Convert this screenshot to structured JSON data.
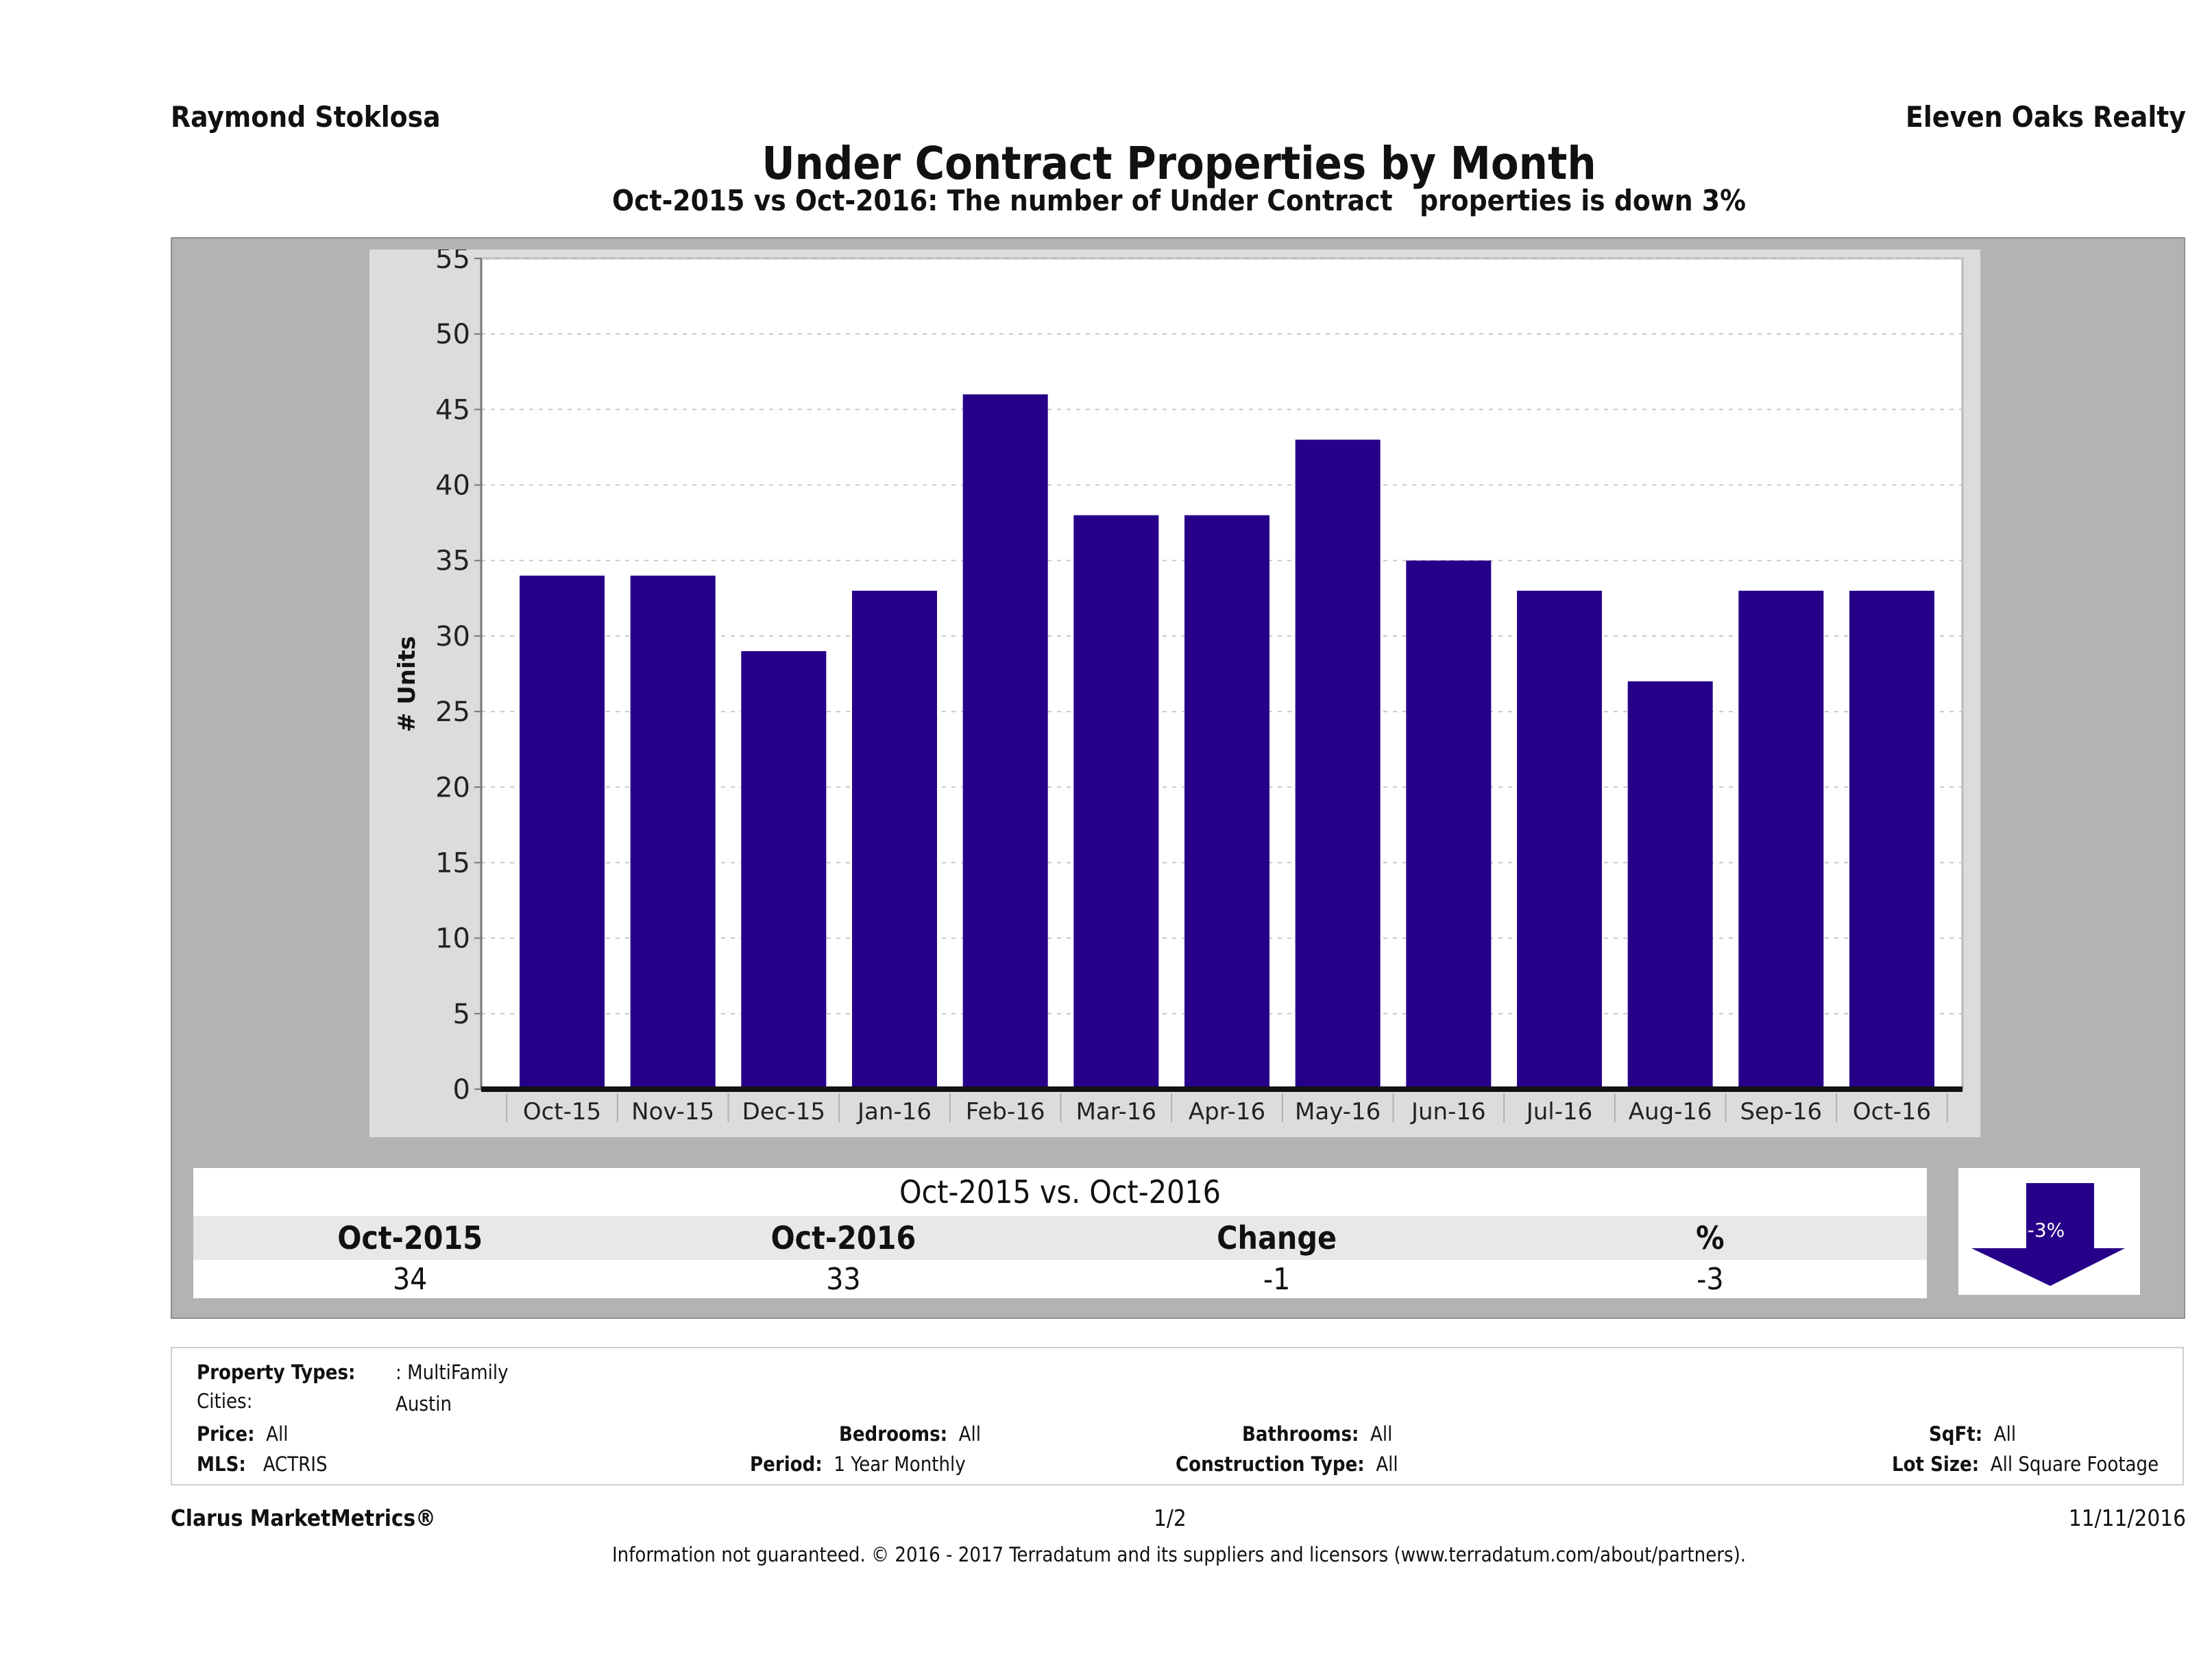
{
  "header": {
    "agent_name": "Raymond Stoklosa",
    "company_name": "Eleven Oaks Realty",
    "title": "Under Contract Properties by Month",
    "subtitle": "Oct-2015 vs Oct-2016: The number of Under Contract   properties is down 3%"
  },
  "chart_data": {
    "type": "bar",
    "title": "Under Contract Properties by Month",
    "xlabel": "",
    "ylabel": "# Units",
    "categories": [
      "Oct-15",
      "Nov-15",
      "Dec-15",
      "Jan-16",
      "Feb-16",
      "Mar-16",
      "Apr-16",
      "May-16",
      "Jun-16",
      "Jul-16",
      "Aug-16",
      "Sep-16",
      "Oct-16"
    ],
    "values": [
      34,
      34,
      29,
      33,
      46,
      38,
      38,
      43,
      35,
      33,
      27,
      33,
      33
    ],
    "ylim": [
      0,
      55
    ],
    "yticks": [
      0,
      5,
      10,
      15,
      20,
      25,
      30,
      35,
      40,
      45,
      50,
      55
    ],
    "grid": true,
    "legend": "none",
    "bar_color": "#270089"
  },
  "comparison": {
    "title": "Oct-2015 vs. Oct-2016",
    "headers": [
      "Oct-2015",
      "Oct-2016",
      "Change",
      "%"
    ],
    "values": [
      "34",
      "33",
      "-1",
      "-3"
    ],
    "badge_label": "-3%",
    "badge_direction": "down",
    "badge_color": "#270089"
  },
  "filters": {
    "property_types_label": "Property Types:",
    "property_types_value": ": MultiFamily",
    "cities_label": "Cities:",
    "cities_value": "Austin",
    "price_label": "Price:",
    "price_value": "All",
    "bedrooms_label": "Bedrooms:",
    "bedrooms_value": "All",
    "bathrooms_label": "Bathrooms:",
    "bathrooms_value": "All",
    "sqft_label": "SqFt:",
    "sqft_value": "All",
    "mls_label": "MLS:",
    "mls_value": "ACTRIS",
    "period_label": "Period:",
    "period_value": "1 Year Monthly",
    "construction_label": "Construction Type:",
    "construction_value": "All",
    "lot_size_label": "Lot Size:",
    "lot_size_value": "All Square Footage"
  },
  "footer": {
    "brand": "Clarus MarketMetrics®",
    "page": "1/2",
    "date": "11/11/2016",
    "disclaimer": "Information not guaranteed. © 2016 - 2017 Terradatum and its suppliers and licensors (www.terradatum.com/about/partners)."
  }
}
